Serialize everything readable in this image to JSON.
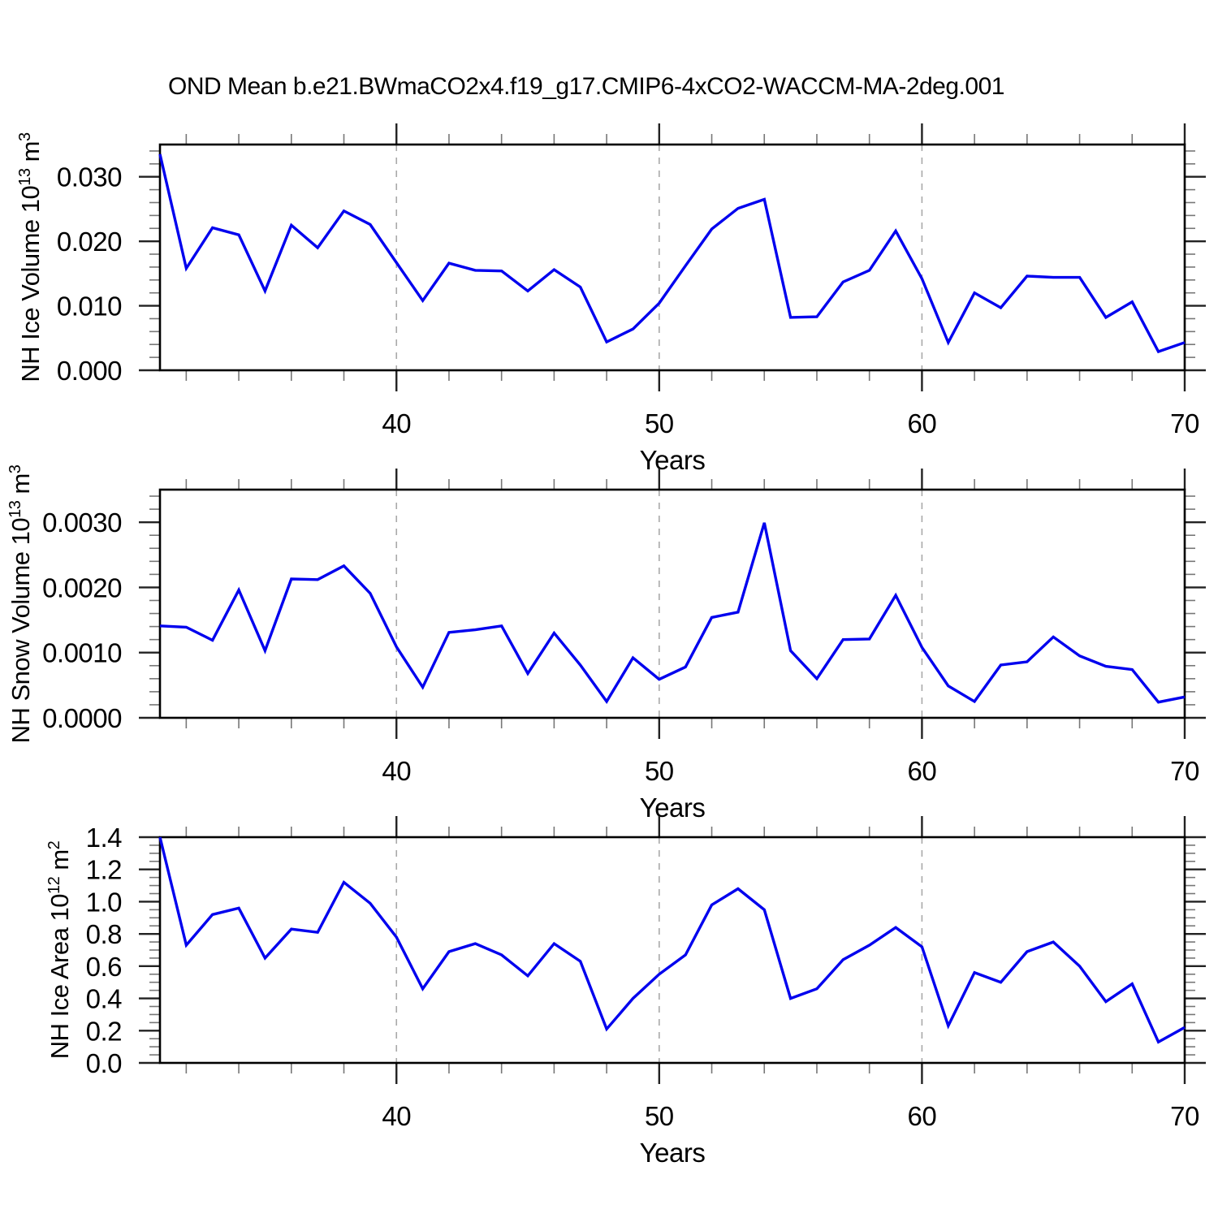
{
  "title": "OND Mean b.e21.BWmaCO2x4.f19_g17.CMIP6-4xCO2-WACCM-MA-2deg.001",
  "panels": [
    {
      "id": "nh-ice-volume",
      "ylabel": {
        "prefix": "NH Ice Volume 10",
        "sup1": "13",
        "mid": " m",
        "sup2": "3"
      }
    },
    {
      "id": "nh-snow-volume",
      "ylabel": {
        "prefix": "NH Snow Volume 10",
        "sup1": "13",
        "mid": " m",
        "sup2": "3"
      }
    },
    {
      "id": "nh-ice-area",
      "ylabel": {
        "prefix": "NH Ice Area 10",
        "sup1": "12",
        "mid": " m",
        "sup2": "2"
      }
    }
  ],
  "chart_data": {
    "type": "line",
    "title": "OND Mean b.e21.BWmaCO2x4.f19_g17.CMIP6-4xCO2-WACCM-MA-2deg.001",
    "x_label": "Years",
    "x_range": [
      31,
      70
    ],
    "years": [
      31,
      32,
      33,
      34,
      35,
      36,
      37,
      38,
      39,
      40,
      41,
      42,
      43,
      44,
      45,
      46,
      47,
      48,
      49,
      50,
      51,
      52,
      53,
      54,
      55,
      56,
      57,
      58,
      59,
      60,
      61,
      62,
      63,
      64,
      65,
      66,
      67,
      68,
      69,
      70
    ],
    "x_major_ticks": [
      40,
      50,
      60,
      70
    ],
    "x_minor_step": 2,
    "gridlines_at": [
      40,
      50,
      60
    ],
    "grid_on": true,
    "legend": "none",
    "line_color": "#0000EE",
    "grid_color": "#A9A9A9",
    "series": [
      {
        "id": "nh-ice-volume",
        "name": "NH Ice Volume 10^13 m^3",
        "ylim": [
          0,
          0.035
        ],
        "ytick_values": [
          0,
          0.01,
          0.02,
          0.03
        ],
        "ytick_labels": [
          "0.000",
          "0.010",
          "0.020",
          "0.030"
        ],
        "y_minor_step": 0.002,
        "values": [
          0.0335,
          0.0158,
          0.0221,
          0.021,
          0.0123,
          0.0225,
          0.019,
          0.0247,
          0.0226,
          0.0167,
          0.0108,
          0.0166,
          0.0155,
          0.0154,
          0.0123,
          0.0156,
          0.0129,
          0.0044,
          0.0064,
          0.0104,
          0.0162,
          0.0219,
          0.0251,
          0.0265,
          0.0082,
          0.0083,
          0.0137,
          0.0155,
          0.0216,
          0.0142,
          0.0043,
          0.012,
          0.0097,
          0.0146,
          0.0144,
          0.0144,
          0.0082,
          0.0106,
          0.0029,
          0.0043
        ]
      },
      {
        "id": "nh-snow-volume",
        "name": "NH Snow Volume 10^13 m^3",
        "ylim": [
          0,
          0.0035
        ],
        "ytick_values": [
          0,
          0.001,
          0.002,
          0.003
        ],
        "ytick_labels": [
          "0.0000",
          "0.0010",
          "0.0020",
          "0.0030"
        ],
        "y_minor_step": 0.0002,
        "values": [
          0.00141,
          0.00139,
          0.00119,
          0.00196,
          0.00103,
          0.00213,
          0.00212,
          0.00233,
          0.00191,
          0.00109,
          0.00047,
          0.00131,
          0.00135,
          0.00141,
          0.00068,
          0.0013,
          0.00081,
          0.00025,
          0.00092,
          0.00059,
          0.00078,
          0.00154,
          0.00162,
          0.00299,
          0.00103,
          0.0006,
          0.0012,
          0.00121,
          0.00188,
          0.00108,
          0.00049,
          0.00025,
          0.00081,
          0.00086,
          0.00124,
          0.00095,
          0.00079,
          0.00074,
          0.00024,
          0.00032
        ]
      },
      {
        "id": "nh-ice-area",
        "name": "NH Ice Area 10^12 m^2",
        "ylim": [
          0,
          1.4
        ],
        "ytick_values": [
          0,
          0.2,
          0.4,
          0.6,
          0.8,
          1.0,
          1.2,
          1.4
        ],
        "ytick_labels": [
          "0.0",
          "0.2",
          "0.4",
          "0.6",
          "0.8",
          "1.0",
          "1.2",
          "1.4"
        ],
        "y_minor_step": 0.05,
        "values": [
          1.4,
          0.73,
          0.92,
          0.96,
          0.65,
          0.83,
          0.81,
          1.12,
          0.99,
          0.78,
          0.46,
          0.69,
          0.74,
          0.67,
          0.54,
          0.74,
          0.63,
          0.21,
          0.4,
          0.55,
          0.67,
          0.98,
          1.08,
          0.95,
          0.4,
          0.46,
          0.64,
          0.73,
          0.84,
          0.72,
          0.23,
          0.56,
          0.5,
          0.69,
          0.75,
          0.6,
          0.38,
          0.49,
          0.13,
          0.22
        ]
      }
    ]
  }
}
